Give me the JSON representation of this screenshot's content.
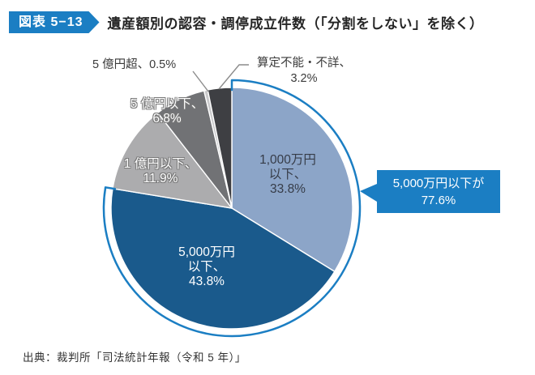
{
  "header": {
    "badge": "図表 5−13",
    "title": "遺産額別の認容・調停成立件数（「分割をしない」を除く）"
  },
  "footer": {
    "source": "出典：裁判所「司法統計年報（令和 5 年）」"
  },
  "colors": {
    "accent_blue": "#1B7EC3",
    "slice_light_blue": "#8CA5C8",
    "slice_dark_blue": "#1A5A8C",
    "slice_light_gray": "#ACACAE",
    "slice_mid_gray": "#717275",
    "slice_pale_gray": "#C9C9CB",
    "slice_charcoal": "#3E3F43",
    "leader_gray": "#8C8C8C"
  },
  "chart_data": {
    "type": "pie",
    "title": "遺産額別の認容・調停成立件数（「分割をしない」を除く）",
    "unit": "%",
    "start_angle_deg": 0,
    "direction": "clockwise",
    "slices": [
      {
        "label": "1,000万円以下",
        "value": 33.8,
        "color": "#8CA5C8",
        "lines": [
          "1,000万円",
          "以下、",
          "33.8%"
        ]
      },
      {
        "label": "5,000万円以下",
        "value": 43.8,
        "color": "#1A5A8C",
        "lines": [
          "5,000万円",
          "以下、",
          "43.8%"
        ]
      },
      {
        "label": "1億円以下",
        "value": 11.9,
        "color": "#ACACAE",
        "lines": [
          "1 億円以下、",
          "11.9%"
        ]
      },
      {
        "label": "5億円以下",
        "value": 6.8,
        "color": "#717275",
        "lines": [
          "5 億円以下、",
          "6.8%"
        ]
      },
      {
        "label": "5億円超",
        "value": 0.5,
        "color": "#C9C9CB",
        "lines": [
          "5 億円超、0.5%"
        ]
      },
      {
        "label": "算定不能・不詳",
        "value": 3.2,
        "color": "#3E3F43",
        "lines": [
          "算定不能・不詳、",
          "3.2%"
        ]
      }
    ],
    "callout": {
      "lines": [
        "5,000万円以下が",
        "77.6%"
      ],
      "value": 77.6,
      "covers_slices": [
        0,
        1
      ],
      "color": "#1B7EC3"
    }
  }
}
